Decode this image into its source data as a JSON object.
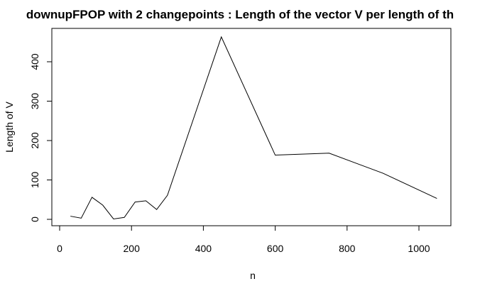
{
  "chart_data": {
    "type": "line",
    "title": "downupFPOP with 2 changepoints : Length of the vector V per length of th",
    "xlabel": "n",
    "ylabel": "Length of V",
    "xlim": [
      0,
      1050
    ],
    "ylim": [
      0,
      460
    ],
    "x_ticks": [
      0,
      200,
      400,
      600,
      800,
      1000
    ],
    "y_ticks": [
      0,
      100,
      200,
      300,
      400
    ],
    "grid": false,
    "legend": "none",
    "line_color": "#000000",
    "series": [
      {
        "x": [
          30,
          60,
          90,
          120,
          150,
          180,
          210,
          240,
          270,
          300,
          450,
          600,
          750,
          900,
          1050
        ],
        "values": [
          8,
          3,
          56,
          36,
          1,
          5,
          44,
          47,
          25,
          61,
          463,
          163,
          168,
          117,
          53
        ]
      }
    ]
  }
}
